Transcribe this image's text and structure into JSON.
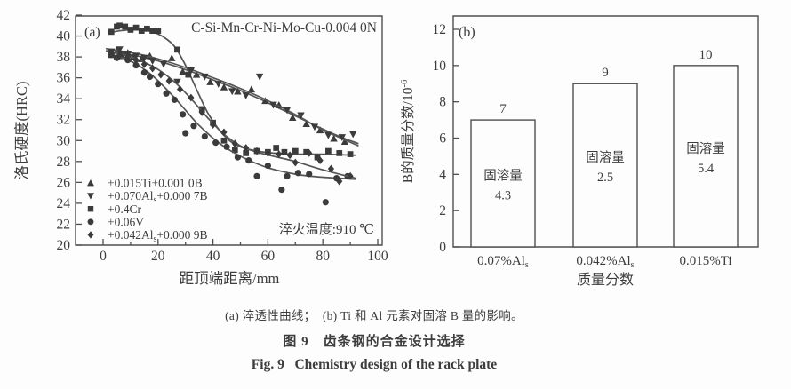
{
  "page": {
    "background": "#fdfdfd"
  },
  "colors": {
    "ink": "#3d3d3d",
    "border": "#4f4f4f",
    "line": "#555555",
    "marker": "#3b3b3b",
    "bar_fill": "#fdfdfd"
  },
  "figure": {
    "caption_sub": "(a) 淬透性曲线；  (b) Ti 和 Al 元素对固溶 B 量的影响。",
    "caption_zh": "图 9　齿条钢的合金设计选择",
    "caption_en": "Fig. 9   Chemistry design of the rack plate"
  },
  "chart_data": [
    {
      "id": "panel-a",
      "type": "scatter",
      "panel_label": "(a)",
      "title": "C-Si-Mn-Cr-Ni-Mo-Cu-0.004 0N",
      "xlabel": "距顶端距离/mm",
      "ylabel": "洛氏硬度(HRC)",
      "annotation": "淬火温度:910 ℃",
      "xlim": [
        -10,
        102
      ],
      "ylim": [
        20,
        42
      ],
      "xticks": [
        0,
        20,
        40,
        60,
        80,
        100
      ],
      "xminorticks": [
        10,
        30,
        50,
        70,
        90
      ],
      "yticks": [
        20,
        22,
        24,
        26,
        28,
        30,
        32,
        34,
        36,
        38,
        40,
        42
      ],
      "grid": false,
      "legend_position": "bottom-left",
      "series": [
        {
          "label": {
            "pre": "+0.015Ti+0.001 0B"
          },
          "marker": "triangle-up",
          "curve": [
            [
              1,
              38.6
            ],
            [
              8,
              38.3
            ],
            [
              16,
              37.9
            ],
            [
              24,
              37.3
            ],
            [
              32,
              36.6
            ],
            [
              40,
              35.8
            ],
            [
              48,
              35.0
            ],
            [
              56,
              34.1
            ],
            [
              64,
              33.1
            ],
            [
              72,
              32.1
            ],
            [
              80,
              31.1
            ],
            [
              86,
              30.4
            ],
            [
              93,
              29.7
            ]
          ],
          "points": [
            [
              3,
              38.2
            ],
            [
              5,
              38.6
            ],
            [
              7,
              38.1
            ],
            [
              9,
              38.4
            ],
            [
              11,
              38.0
            ],
            [
              14,
              37.8
            ],
            [
              17,
              38.1
            ],
            [
              25,
              37.9
            ],
            [
              29,
              36.6
            ],
            [
              34,
              36.3
            ],
            [
              39,
              35.6
            ],
            [
              44,
              35.1
            ],
            [
              49,
              34.7
            ],
            [
              54,
              34.9
            ],
            [
              59,
              33.8
            ],
            [
              64,
              33.4
            ],
            [
              69,
              32.2
            ],
            [
              74,
              31.6
            ],
            [
              79,
              31.0
            ],
            [
              84,
              30.2
            ],
            [
              88,
              29.9
            ]
          ]
        },
        {
          "label": {
            "pre": "+0.070Al",
            "sub": "s",
            "post": "+0.000 7B"
          },
          "marker": "triangle-down",
          "curve": [
            [
              1,
              38.8
            ],
            [
              8,
              38.5
            ],
            [
              16,
              38.1
            ],
            [
              24,
              37.5
            ],
            [
              32,
              36.8
            ],
            [
              40,
              36.0
            ],
            [
              48,
              35.2
            ],
            [
              56,
              34.3
            ],
            [
              64,
              33.3
            ],
            [
              72,
              32.2
            ],
            [
              80,
              31.0
            ],
            [
              86,
              30.3
            ],
            [
              93,
              29.5
            ]
          ],
          "points": [
            [
              3,
              38.5
            ],
            [
              6,
              38.7
            ],
            [
              9,
              38.3
            ],
            [
              12,
              38.1
            ],
            [
              15,
              37.9
            ],
            [
              18,
              37.6
            ],
            [
              22,
              37.3
            ],
            [
              27,
              35.6
            ],
            [
              32,
              36.7
            ],
            [
              37,
              36.1
            ],
            [
              42,
              35.4
            ],
            [
              47,
              34.7
            ],
            [
              52,
              34.3
            ],
            [
              57,
              36.1
            ],
            [
              62,
              33.4
            ],
            [
              67,
              32.9
            ],
            [
              72,
              32.4
            ],
            [
              77,
              31.3
            ],
            [
              82,
              30.5
            ],
            [
              87,
              30.3
            ],
            [
              91,
              30.6
            ]
          ]
        },
        {
          "label": {
            "pre": "+0.4Cr"
          },
          "marker": "square",
          "curve": [
            [
              2,
              40.3
            ],
            [
              6,
              40.5
            ],
            [
              10,
              40.6
            ],
            [
              14,
              40.6
            ],
            [
              18,
              40.4
            ],
            [
              22,
              39.9
            ],
            [
              26,
              39.0
            ],
            [
              30,
              37.2
            ],
            [
              34,
              34.9
            ],
            [
              38,
              32.7
            ],
            [
              42,
              31.1
            ],
            [
              46,
              30.0
            ],
            [
              50,
              29.4
            ],
            [
              56,
              29.0
            ],
            [
              62,
              28.8
            ],
            [
              70,
              28.7
            ],
            [
              80,
              28.7
            ],
            [
              92,
              28.6
            ]
          ],
          "points": [
            [
              3,
              40.4
            ],
            [
              5,
              40.9
            ],
            [
              6,
              41.0
            ],
            [
              8,
              40.9
            ],
            [
              10,
              40.6
            ],
            [
              12,
              40.8
            ],
            [
              14,
              40.5
            ],
            [
              16,
              40.7
            ],
            [
              18,
              40.5
            ],
            [
              20,
              40.5
            ],
            [
              27,
              38.7
            ],
            [
              31,
              36.3
            ],
            [
              36,
              33.0
            ],
            [
              40,
              31.7
            ],
            [
              44,
              30.0
            ],
            [
              48,
              29.1
            ],
            [
              52,
              28.8
            ],
            [
              56,
              29.0
            ],
            [
              60,
              28.9
            ],
            [
              63,
              29.3
            ],
            [
              66,
              28.9
            ],
            [
              70,
              29.0
            ],
            [
              74,
              28.9
            ],
            [
              78,
              28.4
            ],
            [
              82,
              29.0
            ],
            [
              86,
              28.8
            ],
            [
              90,
              28.7
            ]
          ]
        },
        {
          "label": {
            "pre": "+0.06V"
          },
          "marker": "circle",
          "curve": [
            [
              2,
              38.3
            ],
            [
              6,
              38.0
            ],
            [
              10,
              37.6
            ],
            [
              14,
              37.0
            ],
            [
              18,
              36.2
            ],
            [
              22,
              35.2
            ],
            [
              26,
              34.1
            ],
            [
              30,
              32.9
            ],
            [
              34,
              31.7
            ],
            [
              38,
              30.7
            ],
            [
              42,
              29.8
            ],
            [
              46,
              29.1
            ],
            [
              50,
              28.5
            ],
            [
              55,
              27.9
            ],
            [
              60,
              27.4
            ],
            [
              66,
              27.0
            ],
            [
              72,
              26.7
            ],
            [
              80,
              26.5
            ],
            [
              92,
              26.3
            ]
          ],
          "points": [
            [
              3,
              38.2
            ],
            [
              5,
              37.9
            ],
            [
              7,
              38.3
            ],
            [
              9,
              37.7
            ],
            [
              12,
              37.2
            ],
            [
              15,
              36.5
            ],
            [
              17,
              36.1
            ],
            [
              20,
              35.4
            ],
            [
              23,
              34.5
            ],
            [
              26,
              33.9
            ],
            [
              29,
              32.5
            ],
            [
              30,
              30.7
            ],
            [
              33,
              31.4
            ],
            [
              37,
              30.4
            ],
            [
              41,
              29.8
            ],
            [
              45,
              29.4
            ],
            [
              49,
              28.4
            ],
            [
              53,
              28.1
            ],
            [
              56,
              26.6
            ],
            [
              60,
              27.6
            ],
            [
              65,
              25.3
            ],
            [
              67,
              26.6
            ],
            [
              71,
              26.9
            ],
            [
              75,
              26.8
            ],
            [
              81,
              24.1
            ],
            [
              85,
              26.4
            ],
            [
              89,
              26.6
            ]
          ]
        },
        {
          "label": {
            "pre": "+0.042Al",
            "sub": "s",
            "post": "+0.000 9B"
          },
          "marker": "diamond",
          "curve": [
            [
              2,
              38.5
            ],
            [
              8,
              38.2
            ],
            [
              14,
              37.6
            ],
            [
              20,
              36.8
            ],
            [
              26,
              35.6
            ],
            [
              32,
              34.0
            ],
            [
              38,
              32.2
            ],
            [
              44,
              30.6
            ],
            [
              50,
              29.5
            ],
            [
              56,
              28.9
            ],
            [
              62,
              28.5
            ],
            [
              70,
              28.0
            ],
            [
              80,
              27.2
            ],
            [
              92,
              26.4
            ]
          ],
          "points": [
            [
              3,
              38.4
            ],
            [
              6,
              38.2
            ],
            [
              9,
              38.0
            ],
            [
              12,
              37.7
            ],
            [
              15,
              37.3
            ],
            [
              18,
              36.9
            ],
            [
              21,
              36.3
            ],
            [
              24,
              35.7
            ],
            [
              28,
              34.9
            ],
            [
              32,
              34.1
            ],
            [
              36,
              32.7
            ],
            [
              40,
              31.5
            ],
            [
              44,
              30.8
            ],
            [
              48,
              29.7
            ],
            [
              52,
              29.3
            ],
            [
              56,
              29.0
            ],
            [
              60,
              28.8
            ],
            [
              64,
              28.7
            ],
            [
              68,
              28.6
            ],
            [
              70,
              27.9
            ],
            [
              75,
              28.8
            ],
            [
              79,
              28.1
            ],
            [
              83,
              27.3
            ],
            [
              86,
              26.1
            ],
            [
              90,
              26.6
            ]
          ]
        }
      ]
    },
    {
      "id": "panel-b",
      "type": "bar",
      "panel_label": "(b)",
      "ylabel": {
        "pre": "B的质量分数/10",
        "sup": "-6"
      },
      "xlabel": "质量分数",
      "ylim": [
        0,
        12.7
      ],
      "yticks": [
        0,
        2,
        4,
        6,
        8,
        10,
        12
      ],
      "grid": false,
      "categories": [
        {
          "pre": "0.07%Al",
          "sub": "s"
        },
        {
          "pre": "0.042%Al",
          "sub": "s"
        },
        {
          "pre": "0.015%Ti"
        }
      ],
      "values": [
        7,
        9,
        10
      ],
      "bar_labels": [
        "7",
        "9",
        "10"
      ],
      "inner_labels": [
        {
          "line1": "固溶量",
          "line2": "4.3"
        },
        {
          "line1": "固溶量",
          "line2": "2.5"
        },
        {
          "line1": "固溶量",
          "line2": "5.4"
        }
      ]
    }
  ]
}
